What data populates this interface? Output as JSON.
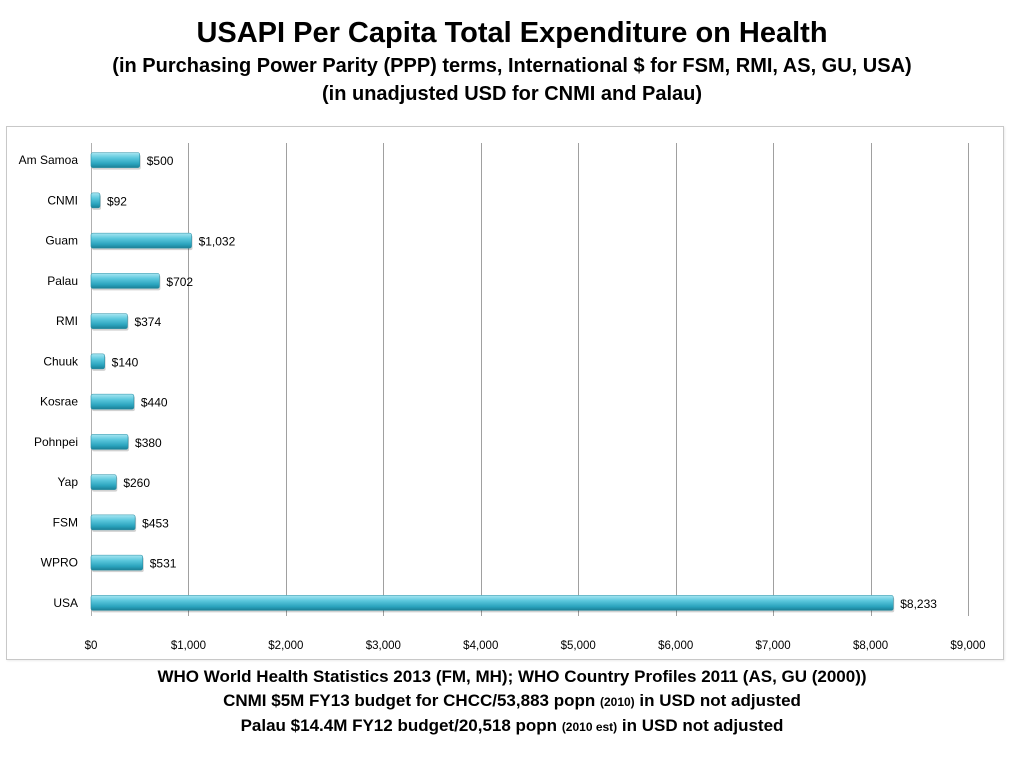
{
  "header": {
    "title": "USAPI Per Capita Total Expenditure on Health",
    "subtitle_line1": "(in Purchasing Power Parity (PPP) terms, International $ for FSM, RMI, AS, GU, USA)",
    "subtitle_line2": "(in unadjusted USD for CNMI and Palau)"
  },
  "chart_data": {
    "type": "bar",
    "orientation": "horizontal",
    "categories": [
      "Am Samoa",
      "CNMI",
      "Guam",
      "Palau",
      "RMI",
      "Chuuk",
      "Kosrae",
      "Pohnpei",
      "Yap",
      "FSM",
      "WPRO",
      "USA"
    ],
    "values": [
      500,
      92,
      1032,
      702,
      374,
      140,
      440,
      380,
      260,
      453,
      531,
      8233
    ],
    "value_labels": [
      "$500",
      "$92",
      "$1,032",
      "$702",
      "$374",
      "$140",
      "$440",
      "$380",
      "$260",
      "$453",
      "$531",
      "$8,233"
    ],
    "xlim": [
      0,
      9000
    ],
    "x_ticks": [
      0,
      1000,
      2000,
      3000,
      4000,
      5000,
      6000,
      7000,
      8000,
      9000
    ],
    "x_tick_labels": [
      "$0",
      "$1,000",
      "$2,000",
      "$3,000",
      "$4,000",
      "$5,000",
      "$6,000",
      "$7,000",
      "$8,000",
      "$9,000"
    ],
    "grid": "vertical",
    "bar_color": "#3fb8cf",
    "title": "",
    "xlabel": "",
    "ylabel": ""
  },
  "footnotes": {
    "line1": "WHO World Health Statistics 2013 (FM, MH);  WHO Country Profiles 2011 (AS, GU (2000))",
    "line2_main": "CNMI $5M FY13 budget for CHCC/53,883 popn",
    "line2_small": "(2010)",
    "line2_tail": "in USD not adjusted",
    "line3_main": "Palau $14.4M FY12 budget/20,518 popn",
    "line3_small": "(2010 est)",
    "line3_tail": "in USD not adjusted"
  }
}
